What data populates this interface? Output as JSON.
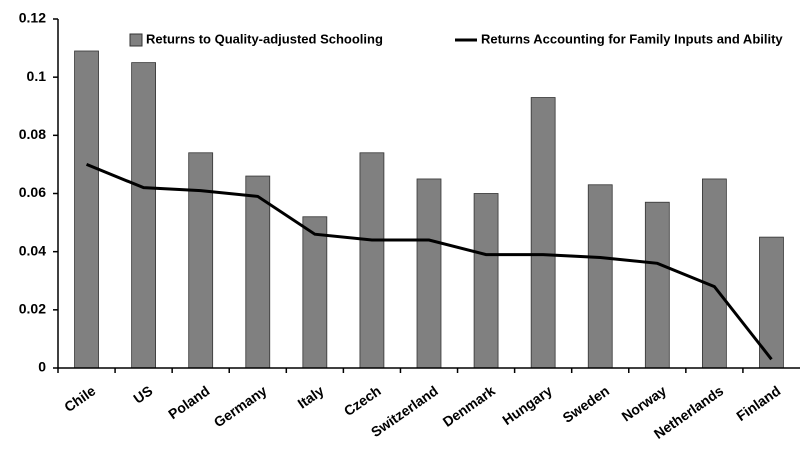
{
  "chart_data": {
    "type": "bar_line",
    "categories": [
      "Chile",
      "US",
      "Poland",
      "Germany",
      "Italy",
      "Czech",
      "Switzerland",
      "Denmark",
      "Hungary",
      "Sweden",
      "Norway",
      "Netherlands",
      "Finland"
    ],
    "series": [
      {
        "name": "Returns to Quality-adjusted Schooling",
        "type": "bar",
        "color": "#808080",
        "values": [
          0.109,
          0.105,
          0.074,
          0.066,
          0.052,
          0.074,
          0.065,
          0.06,
          0.093,
          0.063,
          0.057,
          0.065,
          0.045
        ]
      },
      {
        "name": "Returns Accounting for Family Inputs and Ability",
        "type": "line",
        "color": "#000000",
        "values": [
          0.07,
          0.062,
          0.061,
          0.059,
          0.046,
          0.044,
          0.044,
          0.039,
          0.039,
          0.038,
          0.036,
          0.028,
          0.003
        ]
      }
    ],
    "ylim": [
      0,
      0.12
    ],
    "yticks": [
      0,
      0.02,
      0.04,
      0.06,
      0.08,
      0.1,
      0.12
    ],
    "grid": false,
    "legend": "top"
  }
}
